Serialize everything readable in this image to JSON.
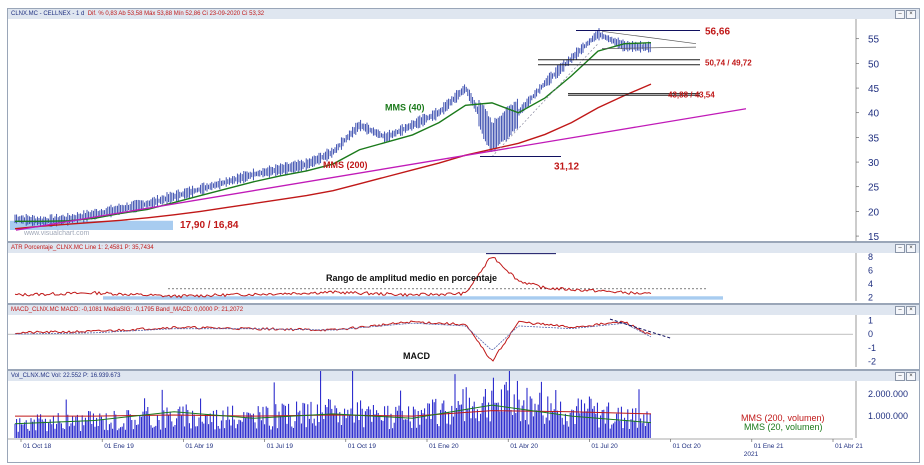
{
  "header_info": {
    "symbol": "CLNX.MC - CELLNEX - 1 d",
    "quote": "Dif. % 0,83  Ab 53,58  Máx 53,88  Mín 52,86  Ci 23-09-2020  Ci 53,32"
  },
  "panels": {
    "price": {
      "legend": "",
      "watermark": "www.visualchart.com"
    },
    "atr": {
      "legend": "ATR Porcentaje_CLNX.MC  Line 1: 2,4581  P: 35,7434"
    },
    "macd": {
      "legend": "MACD_CLNX.MC  MACD: -0,1081  MediaSIG: -0,1795  Band_MACD: 0,0000  P: 21,2072"
    },
    "volume": {
      "legend": "Vol_CLNX.MC  Vol: 22.552  P: 16.939.673"
    }
  },
  "annotations": {
    "high": "56,66",
    "resistance": "50,74 / 49,72",
    "support": "43,88 / 43,54",
    "low_covid": "31,12",
    "base": "17,90 / 16,84",
    "mms40": "MMS (40)",
    "mms200": "MMS (200)",
    "atr_caption": "Rango de amplitud medio en porcentaje",
    "macd_caption": "MACD",
    "vol_mms200": "MMS (200, volumen)",
    "vol_mms20": "MMS (20, volumen)"
  },
  "colors": {
    "price": "#2a3ea8",
    "mms40": "#1b7a1b",
    "mms200": "#c01818",
    "trendline": "#c01ab8",
    "annotation": "#c01818",
    "highlight_band": "#a8ccf0",
    "panel_header": "#dfe6f0"
  },
  "chart_data": [
    {
      "type": "line",
      "title": "",
      "ylim": [
        14,
        59
      ],
      "y_ticks": [
        "55",
        "50",
        "45",
        "40",
        "35",
        "30",
        "25",
        "20",
        "15"
      ],
      "x_ticks": [
        "01 Oct 18",
        "01 Ene 19",
        "01 Abr 19",
        "01 Jul 19",
        "01 Oct 19",
        "01 Ene 20",
        "01 Abr 20",
        "01 Jul 20",
        "01 Oct 20",
        "01 Ene 21",
        "01 Abr 21"
      ],
      "x_year_label": "2021",
      "x": [
        "2018-09",
        "2018-10",
        "2018-11",
        "2018-12",
        "2019-01",
        "2019-02",
        "2019-03",
        "2019-04",
        "2019-05",
        "2019-06",
        "2019-07",
        "2019-08",
        "2019-09",
        "2019-10",
        "2019-11",
        "2019-12",
        "2020-01",
        "2020-02",
        "2020-03",
        "2020-04",
        "2020-05",
        "2020-06",
        "2020-07",
        "2020-08",
        "2020-09"
      ],
      "series": [
        {
          "name": "",
          "values": [
            18.5,
            18.0,
            18.4,
            19.4,
            20.5,
            21.5,
            23.0,
            24.5,
            26.0,
            27.5,
            28.5,
            29.5,
            32.0,
            37.5,
            35.0,
            37.5,
            40.0,
            45.0,
            35.0,
            40.0,
            46.0,
            51.0,
            56.0,
            53.5,
            53.3
          ]
        },
        {
          "name": "MMS (40)",
          "values": [
            18.0,
            18.0,
            18.1,
            18.6,
            19.6,
            20.4,
            21.8,
            23.2,
            24.6,
            26.0,
            27.2,
            28.2,
            29.6,
            32.5,
            34.0,
            35.5,
            38.0,
            41.5,
            42.0,
            40.0,
            43.0,
            47.5,
            52.5,
            54.0,
            54.2
          ]
        },
        {
          "name": "MMS (200)",
          "values": [
            16.5,
            17.0,
            17.4,
            17.8,
            18.2,
            18.7,
            19.3,
            20.0,
            20.8,
            21.6,
            22.4,
            23.2,
            24.2,
            25.6,
            27.0,
            28.4,
            29.8,
            31.4,
            32.6,
            33.8,
            35.6,
            38.0,
            41.0,
            43.5,
            45.8
          ]
        }
      ],
      "levels": [
        56.66,
        50.74,
        49.72,
        43.88,
        43.54,
        31.12,
        17.9,
        16.84
      ]
    },
    {
      "type": "line",
      "title": "",
      "ylim": [
        1.5,
        8.6
      ],
      "y_ticks": [
        "8",
        "6",
        "4",
        "2"
      ],
      "x": [
        "2018-09",
        "2018-12",
        "2019-03",
        "2019-06",
        "2019-09",
        "2019-12",
        "2020-02",
        "2020-03",
        "2020-04",
        "2020-05",
        "2020-07",
        "2020-09"
      ],
      "series": [
        {
          "name": "",
          "values": [
            2.4,
            2.7,
            2.2,
            2.5,
            2.8,
            2.4,
            2.6,
            8.2,
            4.5,
            3.4,
            3.0,
            2.5
          ]
        }
      ],
      "levels": [
        3.3
      ]
    },
    {
      "type": "line",
      "title": "",
      "ylim": [
        -2.4,
        1.4
      ],
      "y_ticks": [
        "1",
        "0",
        "-1",
        "-2"
      ],
      "x": [
        "2018-09",
        "2018-12",
        "2019-03",
        "2019-06",
        "2019-09",
        "2019-12",
        "2020-02",
        "2020-03",
        "2020-04",
        "2020-06",
        "2020-08",
        "2020-09"
      ],
      "series": [
        {
          "name": "MACD",
          "values": [
            0.1,
            0.2,
            0.5,
            0.4,
            0.3,
            0.9,
            0.7,
            -2.0,
            0.9,
            0.5,
            0.9,
            -0.1
          ]
        },
        {
          "name": "",
          "values": [
            0.0,
            0.1,
            0.4,
            0.4,
            0.3,
            0.8,
            0.6,
            -1.2,
            0.6,
            0.4,
            0.8,
            -0.2
          ]
        }
      ]
    },
    {
      "type": "bar",
      "title": "",
      "ylim": [
        0,
        2600000
      ],
      "y_ticks": [
        "2.000.000",
        "1.000.000"
      ],
      "x": [
        "2018-09",
        "2018-12",
        "2019-03",
        "2019-06",
        "2019-09",
        "2019-12",
        "2020-03",
        "2020-06",
        "2020-09"
      ],
      "series": [
        {
          "name": "",
          "values": [
            700000,
            900000,
            1100000,
            1000000,
            1300000,
            1000000,
            2000000,
            1400000,
            900000
          ]
        },
        {
          "name": "MMS (200, volumen)",
          "values": [
            1000000,
            1000000,
            1050000,
            1000000,
            1050000,
            1000000,
            1250000,
            1200000,
            1100000
          ]
        },
        {
          "name": "MMS (20, volumen)",
          "values": [
            650000,
            800000,
            1200000,
            900000,
            1100000,
            900000,
            1500000,
            1000000,
            700000
          ]
        }
      ]
    }
  ]
}
